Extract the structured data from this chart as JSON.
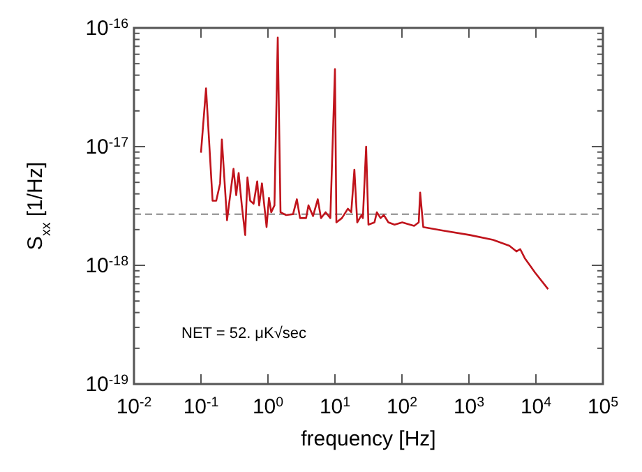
{
  "chart_data": {
    "type": "line",
    "xlabel": "frequency [Hz]",
    "ylabel": "S$_{xx}$ [1/Hz]",
    "log": "xy",
    "grid": false,
    "marker": "none",
    "line_style": "solid",
    "xlim": [
      0.01,
      100000
    ],
    "ylim": [
      1e-19,
      1e-16
    ],
    "xticks": [
      {
        "value": 0.01,
        "label": "10$^{-2}$"
      },
      {
        "value": 0.1,
        "label": "10$^{-1}$"
      },
      {
        "value": 1,
        "label": "10$^{0}$"
      },
      {
        "value": 10,
        "label": "10$^{1}$"
      },
      {
        "value": 100,
        "label": "10$^{2}$"
      },
      {
        "value": 1000,
        "label": "10$^{3}$"
      },
      {
        "value": 10000,
        "label": "10$^{4}$"
      },
      {
        "value": 100000,
        "label": "10$^{5}$"
      }
    ],
    "yticks": [
      {
        "value": 1e-19,
        "label": "10$^{-19}$"
      },
      {
        "value": 2e-19,
        "label": null
      },
      {
        "value": 3e-19,
        "label": null
      },
      {
        "value": 4e-19,
        "label": null
      },
      {
        "value": 5e-19,
        "label": null
      },
      {
        "value": 6e-19,
        "label": null
      },
      {
        "value": 7e-19,
        "label": null
      },
      {
        "value": 8e-19,
        "label": null
      },
      {
        "value": 9e-19,
        "label": null
      },
      {
        "value": 1e-18,
        "label": "10$^{-18}$"
      },
      {
        "value": 2e-18,
        "label": null
      },
      {
        "value": 3e-18,
        "label": null
      },
      {
        "value": 4e-18,
        "label": null
      },
      {
        "value": 5e-18,
        "label": null
      },
      {
        "value": 6e-18,
        "label": null
      },
      {
        "value": 7e-18,
        "label": null
      },
      {
        "value": 8e-18,
        "label": null
      },
      {
        "value": 9e-18,
        "label": null
      },
      {
        "value": 1e-17,
        "label": "10$^{-17}$"
      },
      {
        "value": 2e-17,
        "label": null
      },
      {
        "value": 3e-17,
        "label": null
      },
      {
        "value": 4e-17,
        "label": null
      },
      {
        "value": 5e-17,
        "label": null
      },
      {
        "value": 6e-17,
        "label": null
      },
      {
        "value": 7e-17,
        "label": null
      },
      {
        "value": 8e-17,
        "label": null
      },
      {
        "value": 9e-17,
        "label": null
      },
      {
        "value": 1e-16,
        "label": "10$^{-16}$"
      }
    ],
    "ref_lines": [
      {
        "axis": "y",
        "value": 2.7e-18,
        "color": "#888888",
        "line_style": "dashed"
      }
    ],
    "annotations": [
      "NET = 52. μK√sec"
    ],
    "series": [
      {
        "color": "#c0141c",
        "x": [
          0.1,
          0.119,
          0.149,
          0.169,
          0.193,
          0.205,
          0.245,
          0.306,
          0.336,
          0.365,
          0.407,
          0.457,
          0.494,
          0.543,
          0.61,
          0.691,
          0.739,
          0.813,
          0.953,
          1.035,
          1.12,
          1.25,
          1.4,
          1.54,
          1.87,
          2.37,
          2.7,
          3.01,
          3.71,
          4.02,
          4.71,
          5.54,
          6.19,
          7.25,
          8.53,
          10,
          10.5,
          12.7,
          15.6,
          17.5,
          19.5,
          21.5,
          24.9,
          26.1,
          29.2,
          31.6,
          38.9,
          42.2,
          48,
          53.6,
          62.8,
          77.6,
          101,
          152,
          178,
          187,
          208,
          396,
          1035,
          2290,
          4020,
          5110,
          5820,
          6810,
          9670,
          15200
        ],
        "values": [
          8.9e-18,
          3.1e-17,
          3.5e-18,
          3.5e-18,
          4.9e-18,
          1.15e-17,
          2.4e-18,
          6.5e-18,
          3.9e-18,
          6e-18,
          3.2e-18,
          1.8e-18,
          5.5e-18,
          3.5e-18,
          3.3e-18,
          5.1e-18,
          3.2e-18,
          4.9e-18,
          2.1e-18,
          3.7e-18,
          2.8e-18,
          3.2e-18,
          8.3e-17,
          2.8e-18,
          2.65e-18,
          2.7e-18,
          3.6e-18,
          2.5e-18,
          2.5e-18,
          3.2e-18,
          2.6e-18,
          3.6e-18,
          2.5e-18,
          2.8e-18,
          2.5e-18,
          4.5e-17,
          2.3e-18,
          2.5e-18,
          3e-18,
          2.8e-18,
          6.4e-18,
          2.3e-18,
          2.65e-18,
          2.5e-18,
          1e-17,
          2.2e-18,
          2.3e-18,
          2.8e-18,
          2.5e-18,
          2.65e-18,
          2.3e-18,
          2.2e-18,
          2.3e-18,
          2.15e-18,
          2.3e-18,
          4.1e-18,
          2.1e-18,
          1.97e-18,
          1.8e-18,
          1.64e-18,
          1.46e-18,
          1.31e-18,
          1.37e-18,
          1.15e-18,
          8.7e-19,
          6.3e-19
        ]
      }
    ]
  }
}
